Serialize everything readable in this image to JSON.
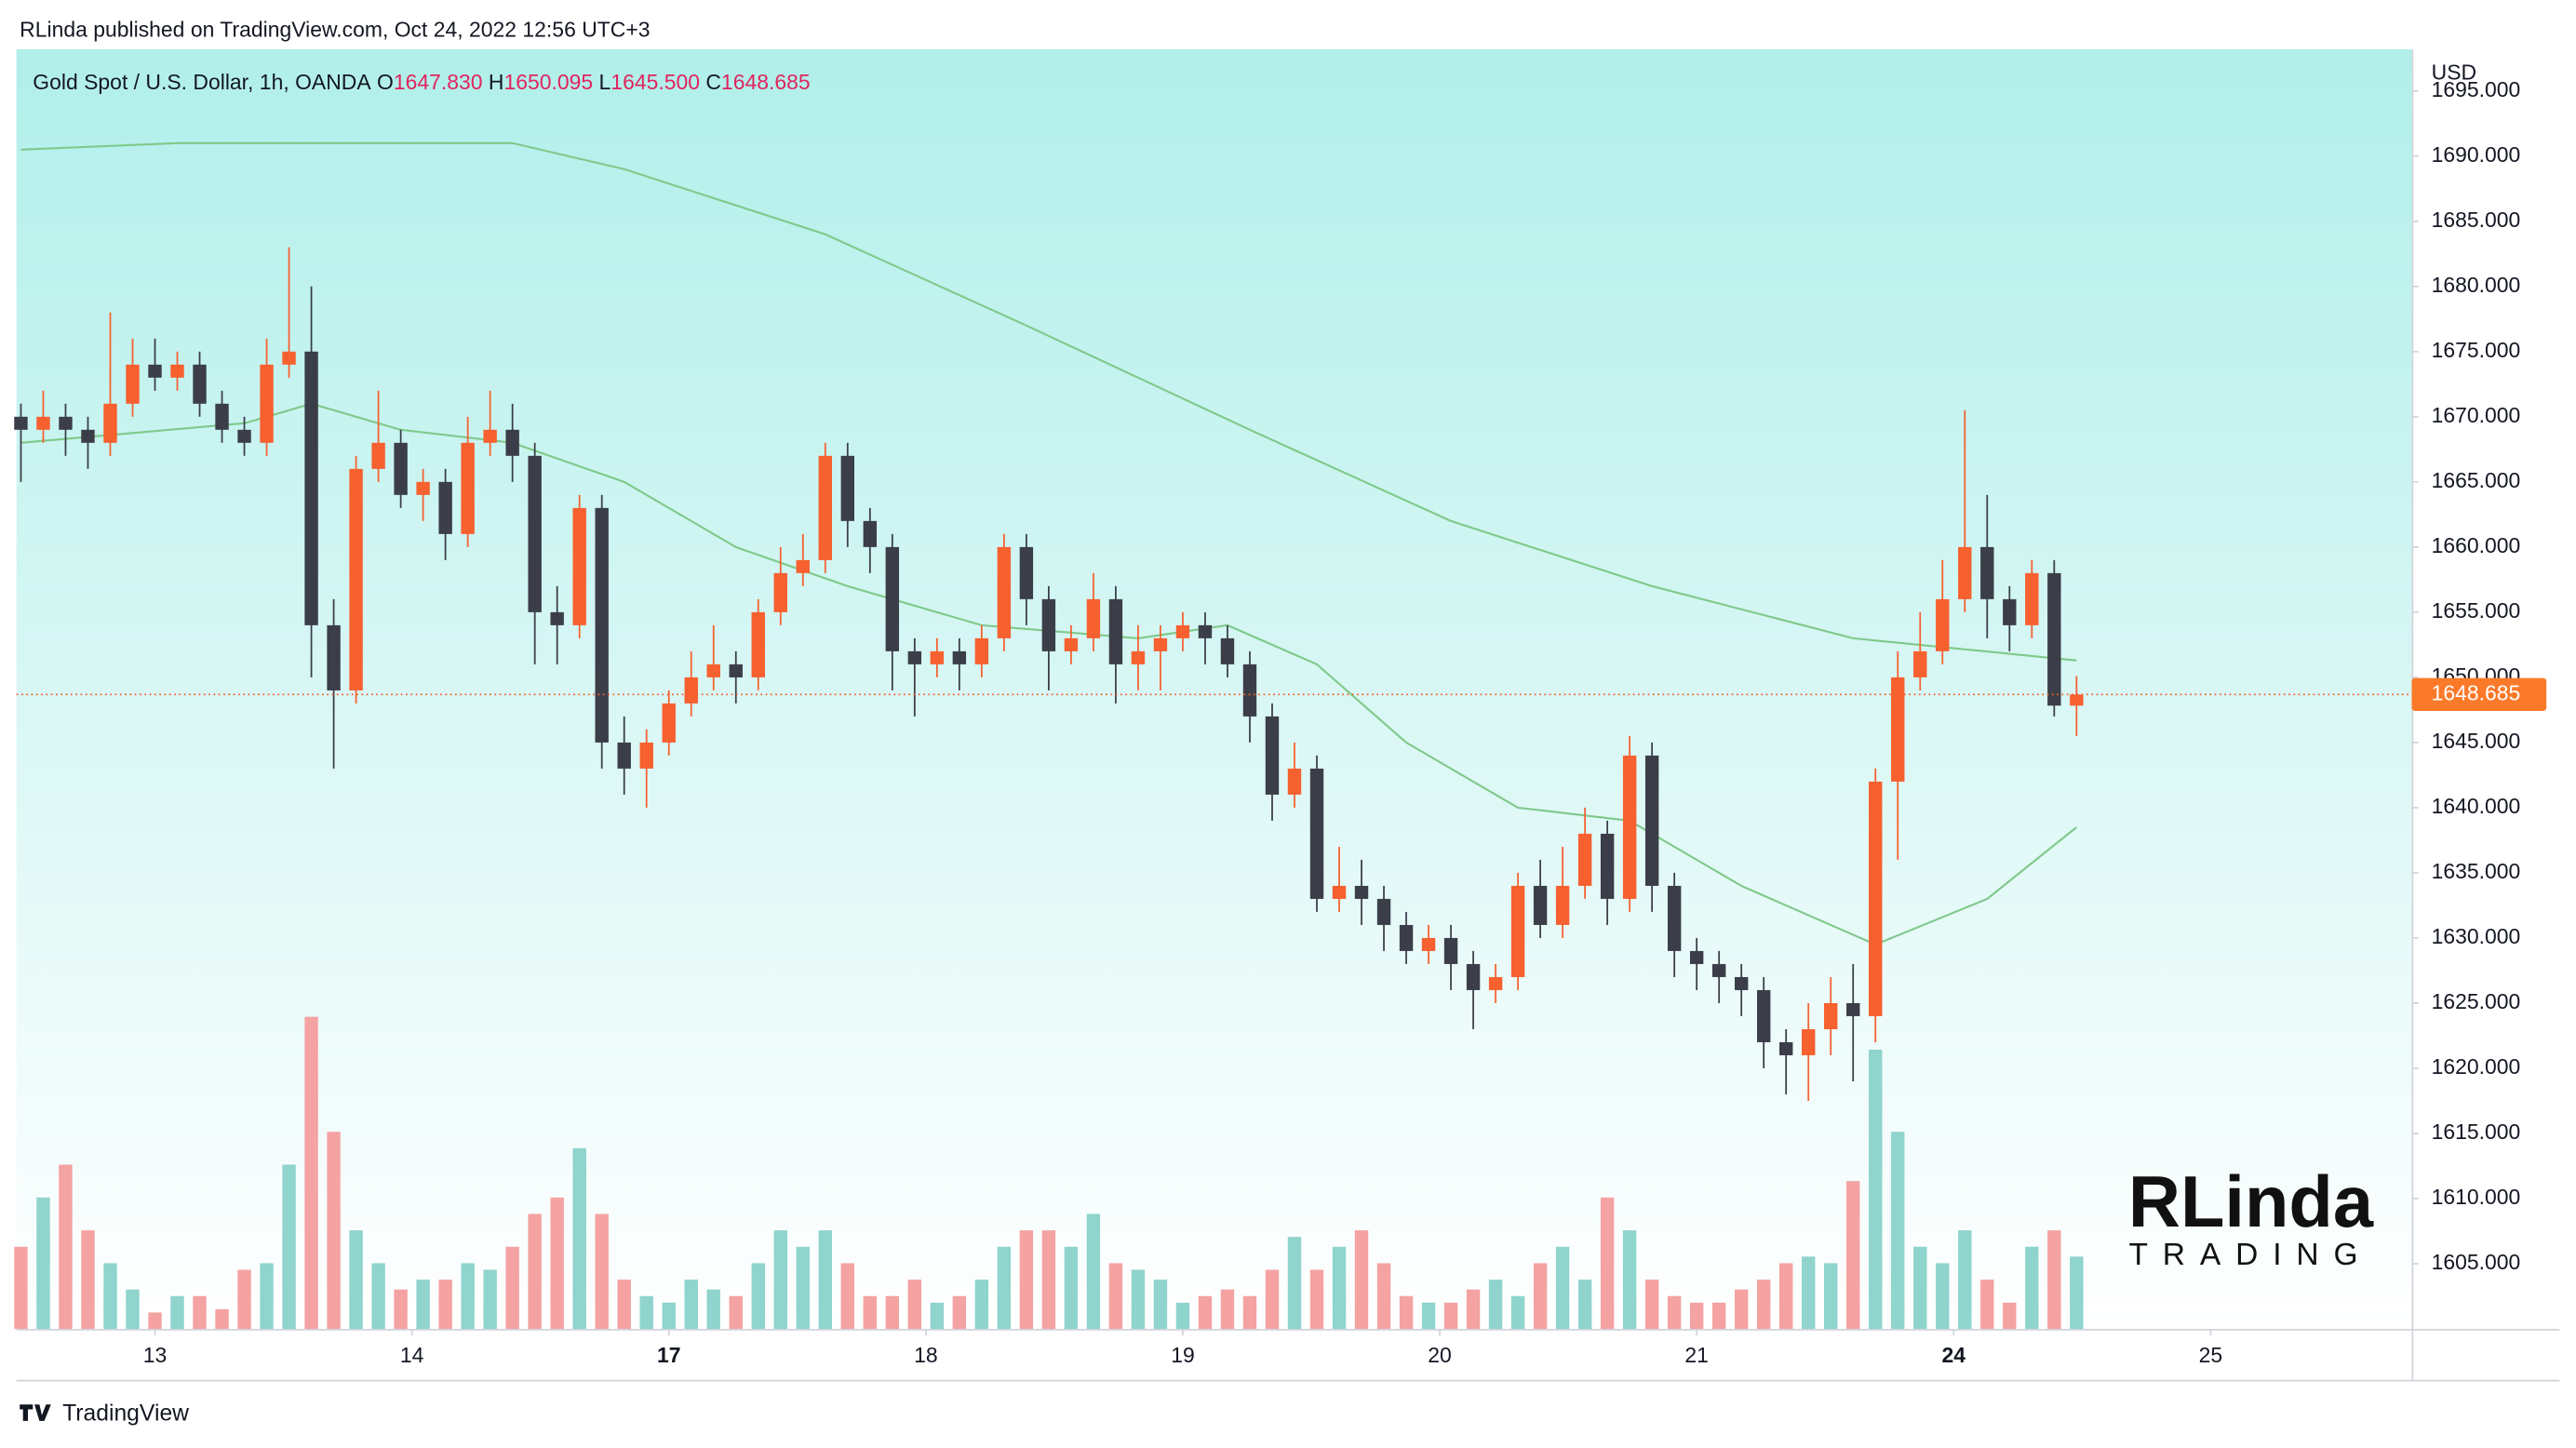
{
  "published": "RLinda published on TradingView.com, Oct 24, 2022 12:56 UTC+3",
  "footer": "TradingView",
  "watermark": {
    "name": "RLinda",
    "subtitle": "TRADING"
  },
  "chart_data": {
    "type": "candlestick",
    "header": {
      "symbol": "Gold Spot / U.S. Dollar, 1h, OANDA",
      "ohlc": [
        {
          "key": "O",
          "value": "1647.830"
        },
        {
          "key": "H",
          "value": "1650.095"
        },
        {
          "key": "L",
          "value": "1645.500"
        },
        {
          "key": "C",
          "value": "1648.685"
        }
      ]
    },
    "y_axis_label": "USD",
    "price_tag": "1648.685",
    "open": [
      1670,
      1669,
      1670,
      1669,
      1668,
      1671,
      1674,
      1673,
      1674,
      1671,
      1669,
      1668,
      1674,
      1675,
      1654,
      1649,
      1666,
      1668,
      1664,
      1665,
      1661,
      1668,
      1669,
      1667,
      1655,
      1654,
      1663,
      1645,
      1643,
      1645,
      1648,
      1650,
      1651,
      1650,
      1655,
      1658,
      1659,
      1667,
      1662,
      1660,
      1652,
      1651,
      1652,
      1651,
      1653,
      1660,
      1656,
      1652,
      1653,
      1656,
      1651,
      1652,
      1653,
      1654,
      1653,
      1651,
      1647,
      1641,
      1643,
      1633,
      1634,
      1633,
      1631,
      1629,
      1630,
      1628,
      1626,
      1627,
      1634,
      1631,
      1634,
      1638,
      1633,
      1644,
      1634,
      1629,
      1628,
      1627,
      1626,
      1622,
      1621,
      1623,
      1625,
      1624,
      1642,
      1650,
      1652,
      1656,
      1660,
      1656,
      1654,
      1658,
      1647.83
    ],
    "high": [
      1671,
      1672,
      1671,
      1670,
      1678,
      1676,
      1676,
      1675,
      1675,
      1672,
      1670,
      1676,
      1683,
      1680,
      1656,
      1667,
      1672,
      1669,
      1666,
      1666,
      1670,
      1672,
      1671,
      1668,
      1657,
      1664,
      1664,
      1647,
      1646,
      1649,
      1652,
      1654,
      1652,
      1656,
      1660,
      1661,
      1668,
      1668,
      1663,
      1661,
      1653,
      1653,
      1653,
      1654,
      1661,
      1661,
      1657,
      1654,
      1658,
      1657,
      1654,
      1654,
      1655,
      1655,
      1654,
      1652,
      1648,
      1645,
      1644,
      1637,
      1636,
      1634,
      1632,
      1631,
      1631,
      1629,
      1628,
      1635,
      1636,
      1637,
      1640,
      1639,
      1645.5,
      1645,
      1635,
      1630,
      1629,
      1628,
      1627,
      1623,
      1625,
      1627,
      1628,
      1643,
      1652,
      1655,
      1659,
      1670.5,
      1664,
      1657,
      1659,
      1659,
      1650.095
    ],
    "low": [
      1665,
      1668,
      1667,
      1666,
      1667,
      1670,
      1672,
      1672,
      1670,
      1668,
      1667,
      1667,
      1673,
      1650,
      1643,
      1648,
      1665,
      1663,
      1662,
      1659,
      1660,
      1667,
      1665,
      1651,
      1651,
      1653,
      1643,
      1641,
      1640,
      1644,
      1647,
      1649,
      1648,
      1649,
      1654,
      1657,
      1658,
      1660,
      1658,
      1649,
      1647,
      1650,
      1649,
      1650,
      1652,
      1654,
      1649,
      1651,
      1652,
      1648,
      1649,
      1649,
      1652,
      1651,
      1650,
      1645,
      1639,
      1640,
      1632,
      1632,
      1631,
      1629,
      1628,
      1628,
      1626,
      1623,
      1625,
      1626,
      1630,
      1630,
      1633,
      1631,
      1632,
      1632,
      1627,
      1626,
      1625,
      1624,
      1620,
      1618,
      1617.5,
      1621,
      1619,
      1622,
      1636,
      1649,
      1651,
      1655,
      1653,
      1652,
      1653,
      1647,
      1645.5
    ],
    "close": [
      1669,
      1670,
      1669,
      1668,
      1671,
      1674,
      1673,
      1674,
      1671,
      1669,
      1668,
      1674,
      1675,
      1654,
      1649,
      1666,
      1668,
      1664,
      1665,
      1661,
      1668,
      1669,
      1667,
      1655,
      1654,
      1663,
      1645,
      1643,
      1645,
      1648,
      1650,
      1651,
      1650,
      1655,
      1658,
      1659,
      1667,
      1662,
      1660,
      1652,
      1651,
      1652,
      1651,
      1653,
      1660,
      1656,
      1652,
      1653,
      1656,
      1651,
      1652,
      1653,
      1654,
      1653,
      1651,
      1647,
      1641,
      1643,
      1633,
      1634,
      1633,
      1631,
      1629,
      1630,
      1628,
      1626,
      1627,
      1634,
      1631,
      1634,
      1638,
      1633,
      1644,
      1634,
      1629,
      1628,
      1627,
      1626,
      1622,
      1621,
      1623,
      1625,
      1624,
      1642,
      1650,
      1652,
      1656,
      1660,
      1656,
      1654,
      1658,
      1647.83,
      1648.685
    ],
    "volume": [
      25,
      40,
      50,
      30,
      20,
      12,
      5,
      10,
      10,
      6,
      18,
      20,
      50,
      95,
      60,
      30,
      20,
      12,
      15,
      15,
      20,
      18,
      25,
      35,
      40,
      55,
      35,
      15,
      10,
      8,
      15,
      12,
      10,
      20,
      30,
      25,
      30,
      20,
      10,
      10,
      15,
      8,
      10,
      15,
      25,
      30,
      30,
      25,
      35,
      20,
      18,
      15,
      8,
      10,
      12,
      10,
      18,
      28,
      18,
      25,
      30,
      20,
      10,
      8,
      8,
      12,
      15,
      10,
      20,
      25,
      15,
      40,
      30,
      15,
      10,
      8,
      8,
      12,
      15,
      20,
      22,
      20,
      45,
      85,
      60,
      25,
      20,
      30,
      15,
      8,
      25,
      30,
      22
    ],
    "volume_lim": [
      0,
      100
    ],
    "up_color": "#f7602f",
    "down_color": "#3b3e48",
    "volume_up_color": "#8fd4cd",
    "volume_down_color": "#f4a2a2",
    "xlim": [
      -0.2,
      107
    ],
    "xticks": [
      {
        "value": 6,
        "label": "13"
      },
      {
        "value": 17.5,
        "label": "14"
      },
      {
        "value": 29,
        "label": "17",
        "bold": true
      },
      {
        "value": 40.5,
        "label": "18"
      },
      {
        "value": 52,
        "label": "19"
      },
      {
        "value": 63.5,
        "label": "20"
      },
      {
        "value": 75,
        "label": "21"
      },
      {
        "value": 86.5,
        "label": "24",
        "bold": true
      },
      {
        "value": 98,
        "label": "25"
      }
    ],
    "ylim": [
      1600,
      1698.2
    ],
    "yticks": [
      {
        "value": 1605,
        "label": "1605.000"
      },
      {
        "value": 1610,
        "label": "1610.000"
      },
      {
        "value": 1615,
        "label": "1615.000"
      },
      {
        "value": 1620,
        "label": "1620.000"
      },
      {
        "value": 1625,
        "label": "1625.000"
      },
      {
        "value": 1630,
        "label": "1630.000"
      },
      {
        "value": 1635,
        "label": "1635.000"
      },
      {
        "value": 1640,
        "label": "1640.000"
      },
      {
        "value": 1645,
        "label": "1645.000"
      },
      {
        "value": 1650,
        "label": "1650.000"
      },
      {
        "value": 1655,
        "label": "1655.000"
      },
      {
        "value": 1660,
        "label": "1660.000"
      },
      {
        "value": 1665,
        "label": "1665.000"
      },
      {
        "value": 1670,
        "label": "1670.000"
      },
      {
        "value": 1675,
        "label": "1675.000"
      },
      {
        "value": 1680,
        "label": "1680.000"
      },
      {
        "value": 1685,
        "label": "1685.000"
      },
      {
        "value": 1690,
        "label": "1690.000"
      },
      {
        "value": 1695,
        "label": "1695.000"
      }
    ],
    "ma_lines": [
      {
        "color": "#7fc98a",
        "x": [
          0,
          7,
          13,
          22,
          27,
          36,
          45,
          55,
          64,
          73,
          82,
          92
        ],
        "values": [
          1690.5,
          1691,
          1691,
          1691,
          1689,
          1684,
          1677,
          1669,
          1662,
          1657,
          1653,
          1651.3
        ]
      },
      {
        "color": "#7fc98a",
        "x": [
          0,
          10,
          13,
          17,
          22,
          27,
          32,
          37,
          43,
          50,
          54,
          58,
          62,
          67,
          72,
          77,
          83,
          88,
          92
        ],
        "values": [
          1668,
          1669.5,
          1671,
          1669,
          1668,
          1665,
          1660,
          1657,
          1654,
          1653,
          1654,
          1651,
          1645,
          1640,
          1639,
          1634,
          1629.5,
          1633,
          1638.5
        ]
      }
    ]
  }
}
